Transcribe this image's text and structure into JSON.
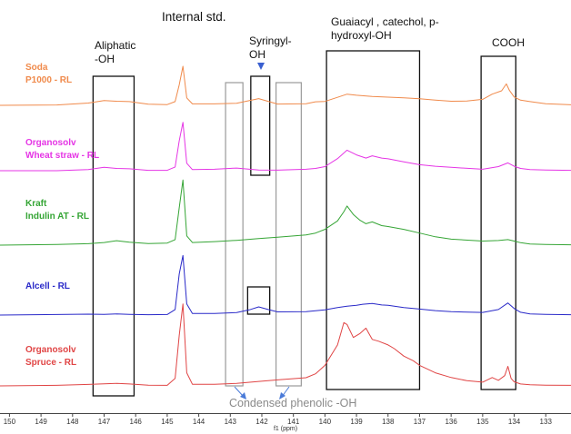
{
  "chart_data": {
    "type": "line",
    "title": "",
    "xlabel": "f1 (ppm)",
    "ylabel": "",
    "xlim": [
      150.3,
      132.2
    ],
    "x_reversed": true,
    "x_ticks": [
      "150",
      "149",
      "148",
      "147",
      "146",
      "145",
      "144",
      "143",
      "142",
      "141",
      "140",
      "139",
      "138",
      "137",
      "136",
      "135",
      "134",
      "133"
    ],
    "grid": false,
    "series": [
      {
        "name": "Soda P1000 - RL",
        "label_lines": [
          "Soda",
          "P1000 - RL"
        ],
        "color": "#f08a4b",
        "baseline": 0.0,
        "x": [
          150.3,
          148.5,
          147.5,
          147.0,
          146.6,
          146.2,
          145.6,
          145.0,
          144.75,
          144.62,
          144.5,
          144.38,
          144.2,
          143.5,
          142.8,
          142.1,
          141.5,
          140.6,
          140.3,
          140.0,
          139.6,
          139.3,
          139.0,
          138.5,
          138.0,
          137.5,
          137.0,
          136.5,
          136.0,
          135.5,
          135.0,
          134.7,
          134.4,
          134.25,
          134.15,
          134.0,
          133.8,
          133.5,
          133.0,
          132.2
        ],
        "y": [
          0.0,
          0.2,
          1.2,
          2.6,
          2.2,
          2.0,
          0.6,
          0.4,
          2.0,
          11.0,
          21.0,
          4.0,
          0.8,
          0.8,
          1.1,
          3.6,
          0.7,
          0.9,
          1.9,
          2.1,
          4.3,
          6.0,
          5.4,
          4.8,
          4.4,
          4.0,
          3.5,
          2.8,
          2.2,
          2.3,
          3.2,
          6.0,
          7.8,
          11.5,
          8.0,
          4.5,
          2.8,
          2.0,
          0.9,
          0.3
        ]
      },
      {
        "name": "Organosolv Wheat straw - RL",
        "label_lines": [
          "Organosolv",
          "Wheat straw - RL"
        ],
        "color": "#e535e5",
        "baseline": 0.0,
        "x": [
          150.3,
          148.5,
          147.5,
          147.0,
          146.6,
          146.2,
          145.6,
          145.0,
          144.75,
          144.62,
          144.5,
          144.38,
          144.2,
          143.5,
          142.8,
          142.1,
          141.5,
          140.6,
          140.3,
          140.0,
          139.6,
          139.3,
          139.0,
          138.7,
          138.5,
          138.2,
          138.0,
          137.5,
          137.0,
          136.5,
          136.0,
          135.0,
          134.5,
          134.2,
          134.0,
          133.8,
          133.5,
          133.0,
          132.2
        ],
        "y": [
          0.0,
          0.0,
          0.6,
          1.8,
          1.2,
          1.0,
          0.2,
          0.2,
          2.0,
          16.0,
          26.0,
          4.0,
          0.6,
          0.8,
          1.4,
          0.4,
          0.3,
          0.8,
          1.2,
          2.2,
          6.5,
          11.0,
          8.5,
          6.8,
          8.0,
          6.8,
          6.4,
          4.8,
          3.2,
          2.4,
          1.8,
          0.8,
          2.2,
          4.2,
          2.4,
          1.2,
          0.6,
          0.4,
          0.2
        ]
      },
      {
        "name": "Kraft Indulin AT - RL",
        "label_lines": [
          "Kraft",
          "Indulin AT - RL"
        ],
        "color": "#35a535",
        "baseline": 0.0,
        "x": [
          150.3,
          148.5,
          147.5,
          147.0,
          146.6,
          146.2,
          145.6,
          145.0,
          144.75,
          144.62,
          144.5,
          144.38,
          144.2,
          143.5,
          142.8,
          142.1,
          141.5,
          140.6,
          140.3,
          140.0,
          139.6,
          139.4,
          139.3,
          139.1,
          138.9,
          138.7,
          138.5,
          138.2,
          138.0,
          137.5,
          137.0,
          136.5,
          136.0,
          135.0,
          134.5,
          134.2,
          134.0,
          133.8,
          133.5,
          133.0,
          132.2
        ],
        "y": [
          0.0,
          0.4,
          0.8,
          1.4,
          2.4,
          1.6,
          0.9,
          1.1,
          3.0,
          20.0,
          35.0,
          5.0,
          1.4,
          1.9,
          2.6,
          3.5,
          4.3,
          5.5,
          6.5,
          8.5,
          13.0,
          18.0,
          21.0,
          16.5,
          13.5,
          11.5,
          12.5,
          10.5,
          10.0,
          8.5,
          6.5,
          4.5,
          3.2,
          2.2,
          2.5,
          3.0,
          2.2,
          1.3,
          0.6,
          0.4,
          0.2
        ]
      },
      {
        "name": "Alcell - RL",
        "label_lines": [
          "Alcell - RL"
        ],
        "color": "#2929c8",
        "baseline": 0.0,
        "x": [
          150.3,
          148.5,
          147.5,
          147.0,
          146.6,
          146.2,
          145.6,
          145.0,
          144.75,
          144.62,
          144.5,
          144.38,
          144.2,
          143.5,
          142.8,
          142.4,
          142.1,
          141.8,
          141.5,
          140.6,
          140.3,
          140.0,
          139.6,
          139.3,
          139.0,
          138.8,
          138.5,
          138.2,
          138.0,
          137.5,
          137.0,
          136.5,
          136.0,
          135.0,
          134.5,
          134.2,
          134.0,
          133.8,
          133.5,
          133.0,
          132.2
        ],
        "y": [
          0.0,
          0.3,
          0.5,
          0.4,
          0.6,
          0.4,
          0.2,
          0.3,
          3.0,
          22.0,
          32.0,
          6.0,
          0.9,
          0.9,
          1.3,
          2.8,
          4.4,
          3.0,
          1.7,
          1.8,
          2.3,
          2.8,
          4.0,
          4.8,
          5.2,
          5.8,
          6.2,
          5.4,
          5.2,
          4.0,
          3.2,
          2.4,
          1.8,
          1.4,
          3.0,
          6.5,
          3.5,
          1.5,
          0.6,
          0.4,
          0.2
        ]
      },
      {
        "name": "Organosolv Spruce - RL",
        "label_lines": [
          "Organosolv",
          "Spruce - RL"
        ],
        "color": "#e04545",
        "baseline": 0.0,
        "x": [
          150.3,
          148.5,
          147.5,
          147.0,
          146.6,
          146.2,
          145.6,
          145.0,
          144.75,
          144.62,
          144.5,
          144.38,
          144.2,
          143.5,
          142.8,
          142.1,
          141.5,
          140.6,
          140.3,
          140.0,
          139.6,
          139.4,
          139.3,
          139.1,
          138.9,
          138.7,
          138.6,
          138.5,
          138.3,
          138.0,
          137.8,
          137.5,
          137.2,
          137.0,
          136.5,
          136.0,
          135.5,
          135.0,
          134.7,
          134.5,
          134.3,
          134.2,
          134.1,
          134.0,
          133.8,
          133.5,
          133.0,
          132.2
        ],
        "y": [
          0.0,
          0.3,
          0.8,
          1.1,
          1.3,
          1.0,
          0.4,
          0.3,
          4.0,
          27.0,
          44.0,
          7.0,
          0.9,
          0.9,
          1.3,
          2.4,
          3.2,
          4.4,
          6.5,
          11.0,
          22.0,
          34.0,
          33.0,
          26.0,
          28.0,
          31.0,
          28.0,
          25.0,
          24.0,
          22.0,
          20.0,
          16.0,
          13.5,
          11.0,
          7.0,
          4.5,
          2.8,
          2.0,
          4.5,
          3.0,
          5.5,
          10.5,
          4.0,
          2.2,
          1.0,
          0.6,
          0.4,
          0.3
        ]
      }
    ],
    "annotations": [
      "Internal std.",
      "Aliphatic",
      "-OH",
      "Syringyl-",
      "OH",
      "Guaiacyl , catechol, p-",
      "hydroxyl-OH",
      "COOH",
      "Condensed phenolic -OH"
    ]
  }
}
